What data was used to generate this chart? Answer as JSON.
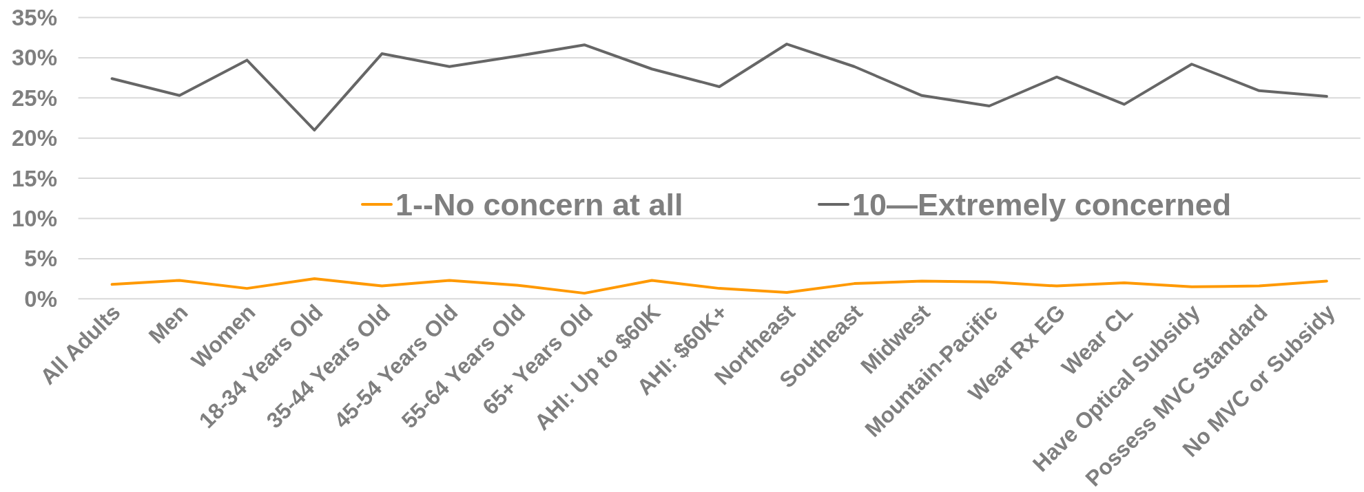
{
  "chart_data": {
    "type": "line",
    "categories": [
      "All Adults",
      "Men",
      "Women",
      "18-34 Years Old",
      "35-44 Years Old",
      "45-54 Years Old",
      "55-64 Years Old",
      "65+ Years Old",
      "AHI: Up to $60K",
      "AHI: $60K+",
      "Northeast",
      "Southeast",
      "Midwest",
      "Mountain-Pacific",
      "Wear Rx EG",
      "Wear CL",
      "Have Optical Subsidy",
      "Possess MVC Standard",
      "No MVC or Subsidy"
    ],
    "series": [
      {
        "name": "1--No concern at all",
        "color": "#ff9900",
        "values": [
          1.8,
          2.3,
          1.3,
          2.5,
          1.6,
          2.3,
          1.7,
          0.7,
          2.3,
          1.3,
          0.8,
          1.9,
          2.2,
          2.1,
          1.6,
          2.0,
          1.5,
          1.6,
          2.2
        ]
      },
      {
        "name": "10—Extremely concerned",
        "color": "#666666",
        "values": [
          27.4,
          25.3,
          29.7,
          21.0,
          30.5,
          28.9,
          30.2,
          31.6,
          28.6,
          26.4,
          31.7,
          28.9,
          25.3,
          24.0,
          27.6,
          24.2,
          29.2,
          25.9,
          25.2
        ]
      }
    ],
    "ylim": [
      0,
      35
    ],
    "yticks": [
      {
        "value": 0,
        "label": "0%"
      },
      {
        "value": 5,
        "label": "5%"
      },
      {
        "value": 10,
        "label": "10%"
      },
      {
        "value": 15,
        "label": "15%"
      },
      {
        "value": 20,
        "label": "20%"
      },
      {
        "value": 25,
        "label": "25%"
      },
      {
        "value": 30,
        "label": "30%"
      },
      {
        "value": 35,
        "label": "35%"
      }
    ],
    "grid": "y",
    "legend": "center"
  }
}
